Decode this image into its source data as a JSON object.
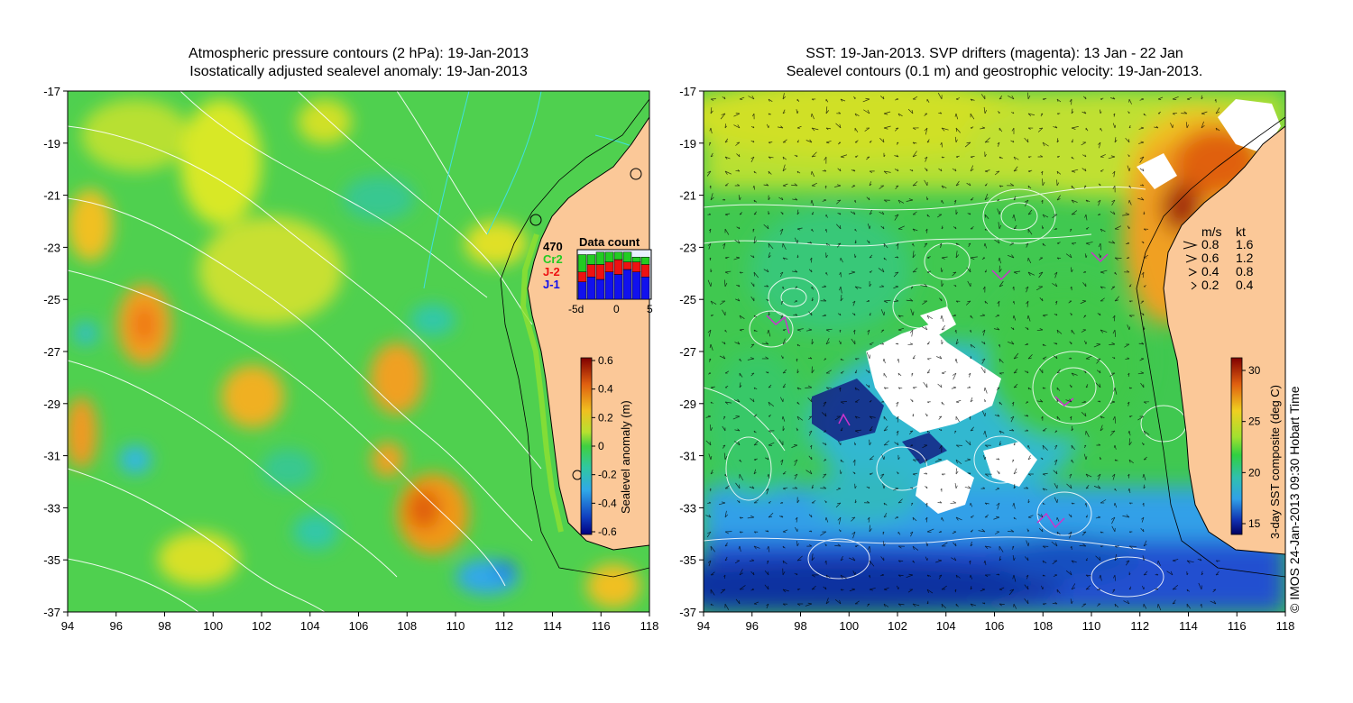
{
  "left_panel": {
    "title_line1": "Atmospheric pressure contours (2 hPa): 19-Jan-2013",
    "title_line2": "Isostatically adjusted sealevel anomaly: 19-Jan-2013",
    "lat_ticks": [
      "-17",
      "-19",
      "-21",
      "-23",
      "-25",
      "-27",
      "-29",
      "-31",
      "-33",
      "-35",
      "-37"
    ],
    "lon_ticks": [
      "94",
      "96",
      "98",
      "100",
      "102",
      "104",
      "106",
      "108",
      "110",
      "112",
      "114",
      "116",
      "118"
    ],
    "data_count": {
      "title": "Data count",
      "total": "470",
      "legend": [
        {
          "label": "Cr2",
          "color": "#22cc22"
        },
        {
          "label": "J-2",
          "color": "#ee1111"
        },
        {
          "label": "J-1",
          "color": "#1111ee"
        }
      ],
      "x_ticks": [
        "-5d",
        "0",
        "5"
      ],
      "bars_j1": [
        0.35,
        0.45,
        0.4,
        0.55,
        0.5,
        0.6,
        0.55,
        0.45
      ],
      "bars_j2": [
        0.2,
        0.25,
        0.3,
        0.2,
        0.3,
        0.15,
        0.2,
        0.25
      ],
      "bars_cr2": [
        0.35,
        0.2,
        0.25,
        0.2,
        0.15,
        0.2,
        0.1,
        0.15
      ]
    },
    "colorbar": {
      "label": "Sealevel anomaly (m)",
      "ticks": [
        "0.6",
        "0.4",
        "0.2",
        "0",
        "-0.2",
        "-0.4",
        "-0.6"
      ]
    }
  },
  "right_panel": {
    "title_line1": "SST: 19-Jan-2013. SVP drifters (magenta): 13 Jan - 22 Jan",
    "title_line2": "Sealevel contours (0.1 m) and geostrophic velocity: 19-Jan-2013.",
    "lat_ticks": [
      "-17",
      "-19",
      "-21",
      "-23",
      "-25",
      "-27",
      "-29",
      "-31",
      "-33",
      "-35",
      "-37"
    ],
    "lon_ticks": [
      "94",
      "96",
      "98",
      "100",
      "102",
      "104",
      "106",
      "108",
      "110",
      "112",
      "114",
      "116",
      "118"
    ],
    "velocity_legend": {
      "header_ms": "m/s",
      "header_kt": "kt",
      "rows": [
        {
          "ms": "0.8",
          "kt": "1.6"
        },
        {
          "ms": "0.6",
          "kt": "1.2"
        },
        {
          "ms": "0.4",
          "kt": "0.8"
        },
        {
          "ms": "0.2",
          "kt": "0.4"
        }
      ]
    },
    "colorbar": {
      "label": "3-day SST composite (deg C)",
      "ticks": [
        "30",
        "25",
        "20",
        "15"
      ]
    }
  },
  "credit": "© IMOS 24-Jan-2013 09:30 Hobart Time",
  "colors": {
    "land": "#fbc898",
    "coast_line": "#000000",
    "drifter": "#cc33cc",
    "contour": "#ffffff"
  }
}
